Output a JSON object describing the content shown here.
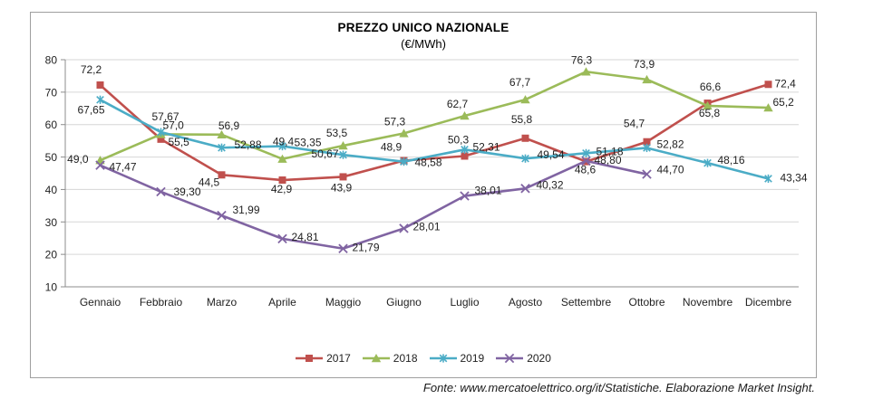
{
  "chart_data": {
    "type": "line",
    "title": "PREZZO UNICO NAZIONALE",
    "subtitle": "(€/MWh)",
    "xlabel": "",
    "ylabel": "",
    "categories": [
      "Gennaio",
      "Febbraio",
      "Marzo",
      "Aprile",
      "Maggio",
      "Giugno",
      "Luglio",
      "Agosto",
      "Settembre",
      "Ottobre",
      "Novembre",
      "Dicembre"
    ],
    "ylim": [
      10,
      80
    ],
    "y_ticks": [
      10,
      20,
      30,
      40,
      50,
      60,
      70,
      80
    ],
    "grid": true,
    "legend_position": "bottom",
    "decimal_separator": ",",
    "series": [
      {
        "name": "2017",
        "color": "#C0504D",
        "marker": "square",
        "values": [
          72.2,
          55.5,
          44.5,
          42.9,
          43.9,
          48.9,
          50.3,
          55.8,
          48.6,
          54.7,
          66.6,
          72.4
        ],
        "labels": [
          "72,2",
          "55,5",
          "44,5",
          "42,9",
          "43,9",
          "48,9",
          "50,3",
          "55,8",
          "48,6",
          "54,7",
          "66,6",
          "72,4"
        ]
      },
      {
        "name": "2018",
        "color": "#9BBB59",
        "marker": "triangle",
        "values": [
          49.0,
          57.0,
          56.9,
          49.4,
          53.5,
          57.3,
          62.7,
          67.7,
          76.3,
          73.9,
          65.8,
          65.2
        ],
        "labels": [
          "49,0",
          "57,0",
          "56,9",
          "49,4",
          "53,5",
          "57,3",
          "62,7",
          "67,7",
          "76,3",
          "73,9",
          "65,8",
          "65,2"
        ]
      },
      {
        "name": "2019",
        "color": "#4BACC6",
        "marker": "star",
        "values": [
          67.65,
          57.67,
          52.88,
          53.35,
          50.67,
          48.58,
          52.31,
          49.54,
          51.18,
          52.82,
          48.16,
          43.34
        ],
        "labels": [
          "67,65",
          "57,67",
          "52,88",
          "53,35",
          "50,67",
          "48,58",
          "52,31",
          "49,54",
          "51,18",
          "52,82",
          "48,16",
          "43,34"
        ]
      },
      {
        "name": "2020",
        "color": "#8064A2",
        "marker": "x",
        "values": [
          47.47,
          39.3,
          31.99,
          24.81,
          21.79,
          28.01,
          38.01,
          40.32,
          48.8,
          44.7
        ],
        "labels": [
          "47,47",
          "39,30",
          "31,99",
          "24,81",
          "21,79",
          "28,01",
          "38,01",
          "40,32",
          "48,80",
          "44,70"
        ]
      }
    ]
  },
  "footer": {
    "source": "Fonte: www.mercatoelettrico.org/it/Statistiche. Elaborazione Market Insight."
  }
}
